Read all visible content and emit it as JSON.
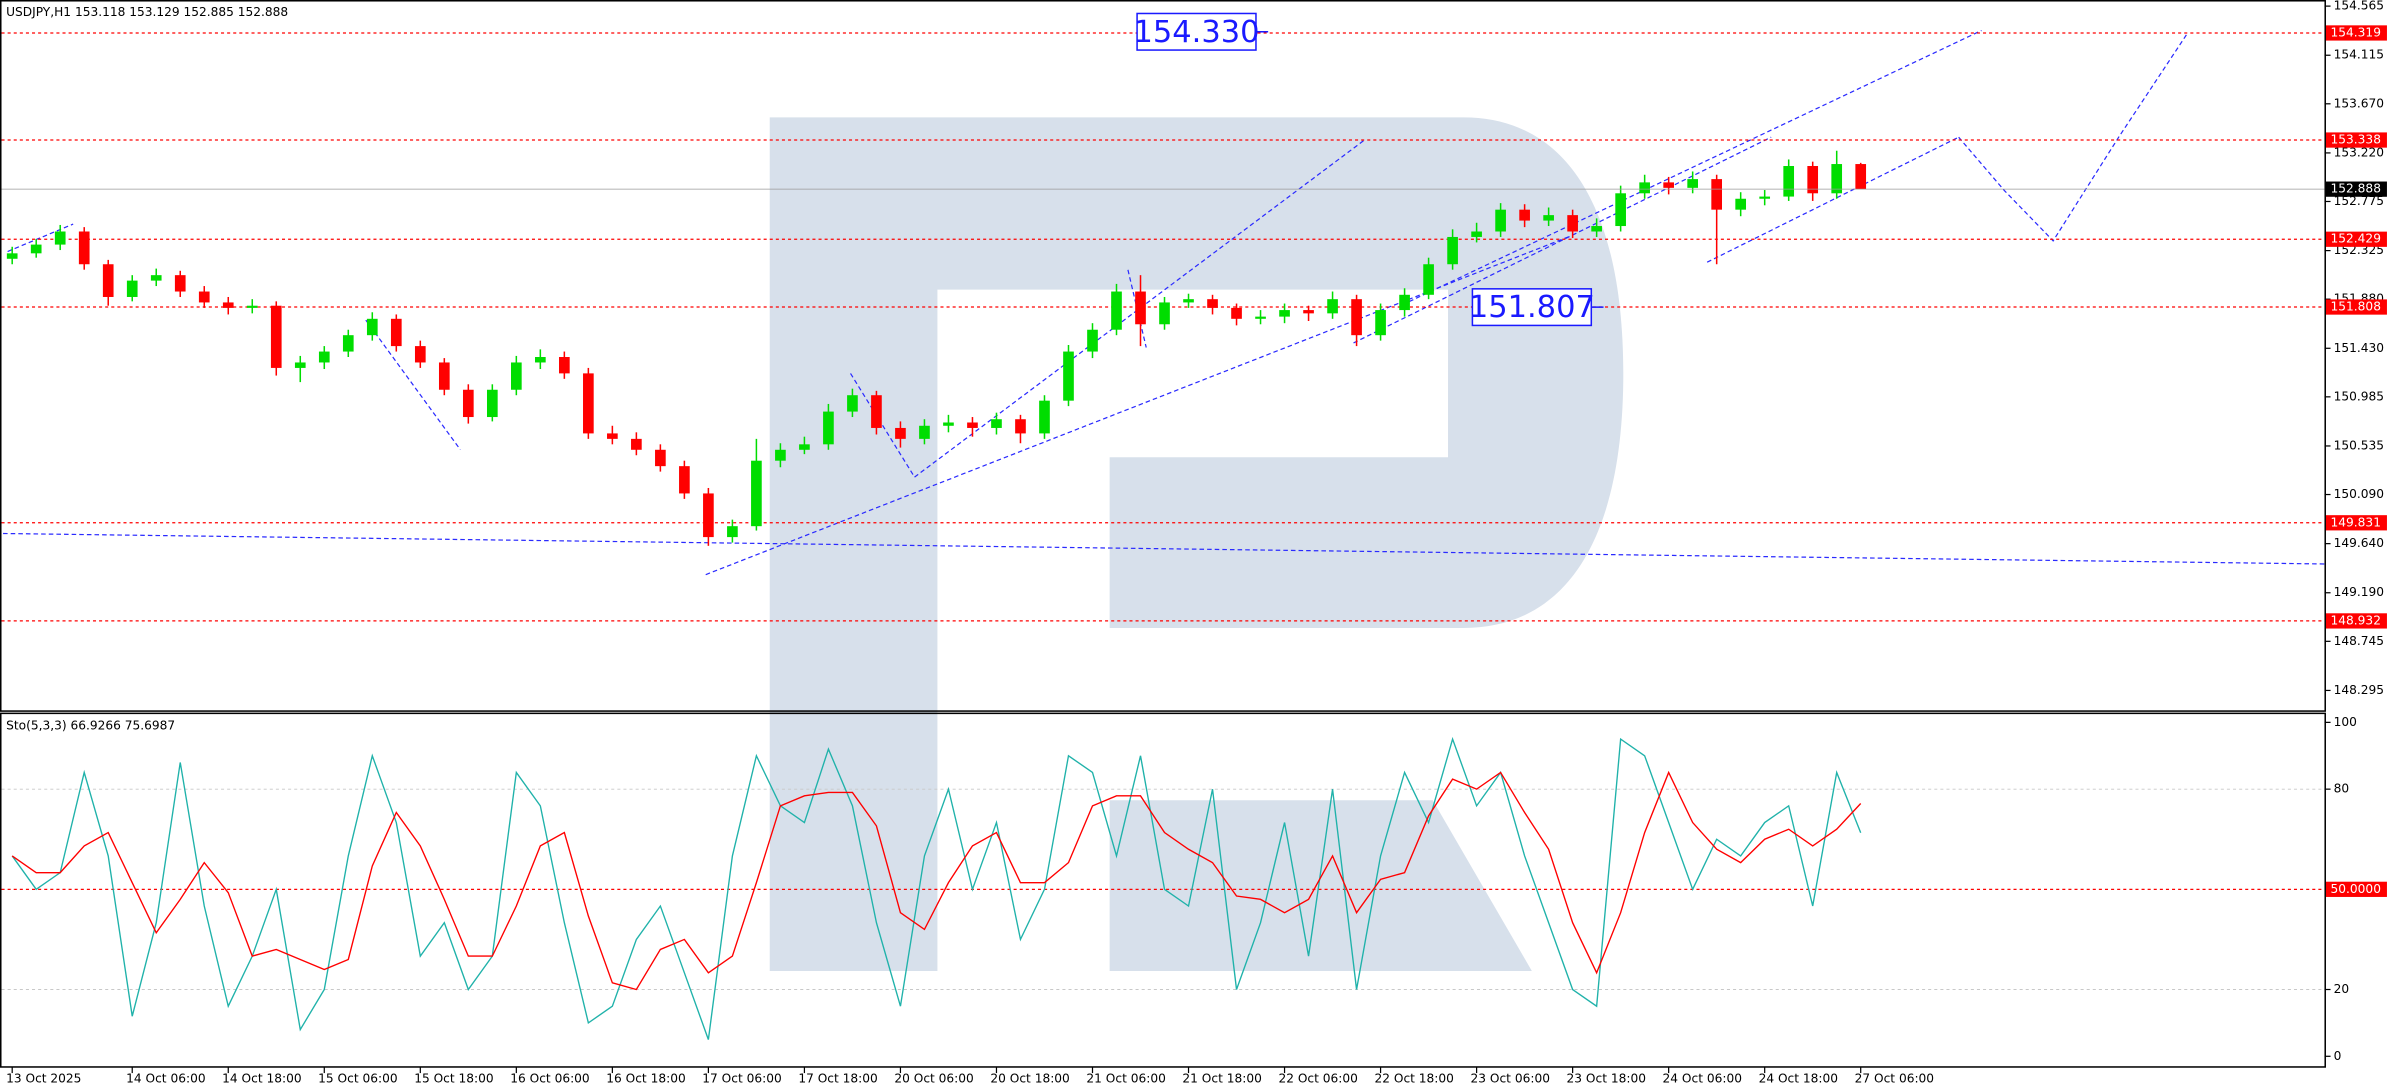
{
  "chart_data": [
    {
      "type": "candlestick",
      "title": "USDJPY,H1",
      "up_color": "#00dd00",
      "down_color": "#ff0000",
      "ylim": [
        148.113,
        154.607
      ],
      "yticks": [
        154.565,
        154.115,
        {
          "value": 153.67,
          "label": "153.670"
        },
        {
          "value": 153.22,
          "label": "153.220"
        },
        152.775,
        152.325,
        {
          "value": 151.88,
          "label": "151.880"
        },
        {
          "value": 151.43,
          "label": "151.430"
        },
        150.985,
        150.535,
        {
          "value": 150.09,
          "label": "150.090"
        },
        {
          "value": 149.64,
          "label": "149.640"
        },
        {
          "value": 149.19,
          "label": "149.190"
        },
        148.745,
        148.295
      ],
      "levels": [
        154.319,
        153.338,
        152.429,
        151.808,
        149.831,
        148.932
      ],
      "level_color": "#ff0000",
      "annotations": [
        {
          "value": 154.33,
          "label": "154.330"
        },
        {
          "value": 151.807,
          "label": "151.807"
        }
      ],
      "candles": [
        [
          152.25,
          152.36,
          152.2,
          152.3
        ],
        [
          152.3,
          152.43,
          152.26,
          152.38
        ],
        [
          152.38,
          152.56,
          152.33,
          152.5
        ],
        [
          152.5,
          152.54,
          152.15,
          152.2
        ],
        [
          152.2,
          152.24,
          151.82,
          151.9
        ],
        [
          151.9,
          152.1,
          151.86,
          152.05
        ],
        [
          152.05,
          152.16,
          152.0,
          152.1
        ],
        [
          152.1,
          152.14,
          151.9,
          151.95
        ],
        [
          151.95,
          152.0,
          151.8,
          151.85
        ],
        [
          151.85,
          151.9,
          151.74,
          151.8
        ],
        [
          151.8,
          151.88,
          151.75,
          151.82
        ],
        [
          151.82,
          151.86,
          151.18,
          151.25
        ],
        [
          151.25,
          151.36,
          151.12,
          151.3
        ],
        [
          151.3,
          151.45,
          151.24,
          151.4
        ],
        [
          151.4,
          151.6,
          151.35,
          151.55
        ],
        [
          151.55,
          151.76,
          151.5,
          151.7
        ],
        [
          151.7,
          151.74,
          151.4,
          151.45
        ],
        [
          151.45,
          151.5,
          151.25,
          151.3
        ],
        [
          151.3,
          151.34,
          151.0,
          151.05
        ],
        [
          151.05,
          151.1,
          150.74,
          150.8
        ],
        [
          150.8,
          151.1,
          150.76,
          151.05
        ],
        [
          151.05,
          151.36,
          151.0,
          151.3
        ],
        [
          151.3,
          151.42,
          151.24,
          151.35
        ],
        [
          151.35,
          151.4,
          151.15,
          151.2
        ],
        [
          151.2,
          151.25,
          150.6,
          150.65
        ],
        [
          150.65,
          150.72,
          150.55,
          150.6
        ],
        [
          150.6,
          150.66,
          150.45,
          150.5
        ],
        [
          150.5,
          150.55,
          150.3,
          150.35
        ],
        [
          150.35,
          150.4,
          150.05,
          150.1
        ],
        [
          150.1,
          150.15,
          149.62,
          149.7
        ],
        [
          149.7,
          149.86,
          149.65,
          149.8
        ],
        [
          149.8,
          150.6,
          149.76,
          150.4
        ],
        [
          150.4,
          150.56,
          150.34,
          150.5
        ],
        [
          150.5,
          150.62,
          150.46,
          150.55
        ],
        [
          150.55,
          150.92,
          150.5,
          150.85
        ],
        [
          150.85,
          151.06,
          150.8,
          151.0
        ],
        [
          151.0,
          151.04,
          150.64,
          150.7
        ],
        [
          150.7,
          150.76,
          150.52,
          150.6
        ],
        [
          150.6,
          150.78,
          150.55,
          150.72
        ],
        [
          150.72,
          150.82,
          150.66,
          150.75
        ],
        [
          150.75,
          150.8,
          150.62,
          150.7
        ],
        [
          150.7,
          150.84,
          150.64,
          150.78
        ],
        [
          150.78,
          150.82,
          150.56,
          150.65
        ],
        [
          150.65,
          151.0,
          150.6,
          150.95
        ],
        [
          150.95,
          151.46,
          150.9,
          151.4
        ],
        [
          151.4,
          151.66,
          151.34,
          151.6
        ],
        [
          151.6,
          152.02,
          151.55,
          151.95
        ],
        [
          151.95,
          152.1,
          151.45,
          151.65
        ],
        [
          151.65,
          151.9,
          151.6,
          151.85
        ],
        [
          151.85,
          151.93,
          151.8,
          151.88
        ],
        [
          151.88,
          151.92,
          151.74,
          151.8
        ],
        [
          151.8,
          151.84,
          151.64,
          151.7
        ],
        [
          151.7,
          151.78,
          151.65,
          151.72
        ],
        [
          151.72,
          151.84,
          151.66,
          151.78
        ],
        [
          151.78,
          151.82,
          151.68,
          151.75
        ],
        [
          151.75,
          151.95,
          151.7,
          151.88
        ],
        [
          151.88,
          151.92,
          151.45,
          151.55
        ],
        [
          151.55,
          151.84,
          151.5,
          151.78
        ],
        [
          151.78,
          151.98,
          151.72,
          151.92
        ],
        [
          151.92,
          152.26,
          151.88,
          152.2
        ],
        [
          152.2,
          152.52,
          152.15,
          152.45
        ],
        [
          152.45,
          152.58,
          152.4,
          152.5
        ],
        [
          152.5,
          152.76,
          152.45,
          152.7
        ],
        [
          152.7,
          152.75,
          152.54,
          152.6
        ],
        [
          152.6,
          152.72,
          152.55,
          152.65
        ],
        [
          152.65,
          152.7,
          152.44,
          152.5
        ],
        [
          152.5,
          152.62,
          152.45,
          152.55
        ],
        [
          152.55,
          152.92,
          152.5,
          152.85
        ],
        [
          152.85,
          153.02,
          152.8,
          152.95
        ],
        [
          152.95,
          153.0,
          152.84,
          152.9
        ],
        [
          152.9,
          153.05,
          152.85,
          152.98
        ],
        [
          152.98,
          153.02,
          152.2,
          152.7
        ],
        [
          152.7,
          152.86,
          152.64,
          152.8
        ],
        [
          152.8,
          152.88,
          152.74,
          152.82
        ],
        [
          152.82,
          153.16,
          152.78,
          153.1
        ],
        [
          153.1,
          153.14,
          152.78,
          152.85
        ],
        [
          152.85,
          153.24,
          152.8,
          153.118
        ],
        [
          153.118,
          153.129,
          152.885,
          152.888
        ]
      ]
    },
    {
      "type": "line",
      "title": "Sto(5,3,3)",
      "ylim": [
        -3.2,
        102.7
      ],
      "yticks": [
        100,
        80,
        20,
        0
      ],
      "grid": true,
      "levels": [
        {
          "value": 50,
          "label": "50.0000"
        }
      ],
      "level_color": "#ff0000",
      "categories": [
        "13 Oct 2025",
        null,
        null,
        null,
        null,
        "14 Oct 06:00",
        null,
        null,
        null,
        "14 Oct 18:00",
        null,
        null,
        null,
        "15 Oct 06:00",
        null,
        null,
        null,
        "15 Oct 18:00",
        null,
        null,
        null,
        "16 Oct 06:00",
        null,
        null,
        null,
        "16 Oct 18:00",
        null,
        null,
        null,
        "17 Oct 06:00",
        null,
        null,
        null,
        "17 Oct 18:00",
        null,
        null,
        null,
        "20 Oct 06:00",
        null,
        null,
        null,
        "20 Oct 18:00",
        null,
        null,
        null,
        "21 Oct 06:00",
        null,
        null,
        null,
        "21 Oct 18:00",
        null,
        null,
        null,
        "22 Oct 06:00",
        null,
        null,
        null,
        "22 Oct 18:00",
        null,
        null,
        null,
        "23 Oct 06:00",
        null,
        null,
        null,
        "23 Oct 18:00",
        null,
        null,
        null,
        "24 Oct 06:00",
        null,
        null,
        null,
        "24 Oct 18:00",
        null,
        null,
        null,
        "27 Oct 06:00"
      ],
      "series": [
        {
          "color": "#20b2aa",
          "values": [
            60,
            50,
            55,
            85,
            60,
            12,
            40,
            88,
            45,
            15,
            30,
            50,
            8,
            20,
            60,
            90,
            70,
            30,
            40,
            20,
            30,
            85,
            75,
            40,
            10,
            15,
            35,
            45,
            25,
            5,
            60,
            90,
            75,
            70,
            92,
            75,
            40,
            15,
            60,
            80,
            50,
            70,
            35,
            50,
            90,
            85,
            60,
            90,
            50,
            45,
            80,
            20,
            40,
            70,
            30,
            80,
            20,
            60,
            85,
            70,
            95,
            75,
            85,
            60,
            40,
            20,
            15,
            95,
            90,
            70,
            50,
            65,
            60,
            70,
            75,
            45,
            85,
            66.9266
          ]
        },
        {
          "color": "#ff0000",
          "values": [
            60,
            55,
            55,
            63,
            67,
            52,
            37,
            47,
            58,
            49,
            30,
            32,
            29,
            26,
            29,
            57,
            73,
            63,
            47,
            30,
            30,
            45,
            63,
            67,
            42,
            22,
            20,
            32,
            35,
            25,
            30,
            52,
            75,
            78,
            79,
            79,
            69,
            43,
            38,
            52,
            63,
            67,
            52,
            52,
            58,
            75,
            78,
            78,
            67,
            62,
            58,
            48,
            47,
            43,
            47,
            60,
            43,
            53,
            55,
            72,
            83,
            80,
            85,
            73,
            62,
            40,
            25,
            43,
            67,
            85,
            70,
            62,
            58,
            65,
            68,
            63,
            68,
            75.6987
          ]
        }
      ]
    }
  ]
}
